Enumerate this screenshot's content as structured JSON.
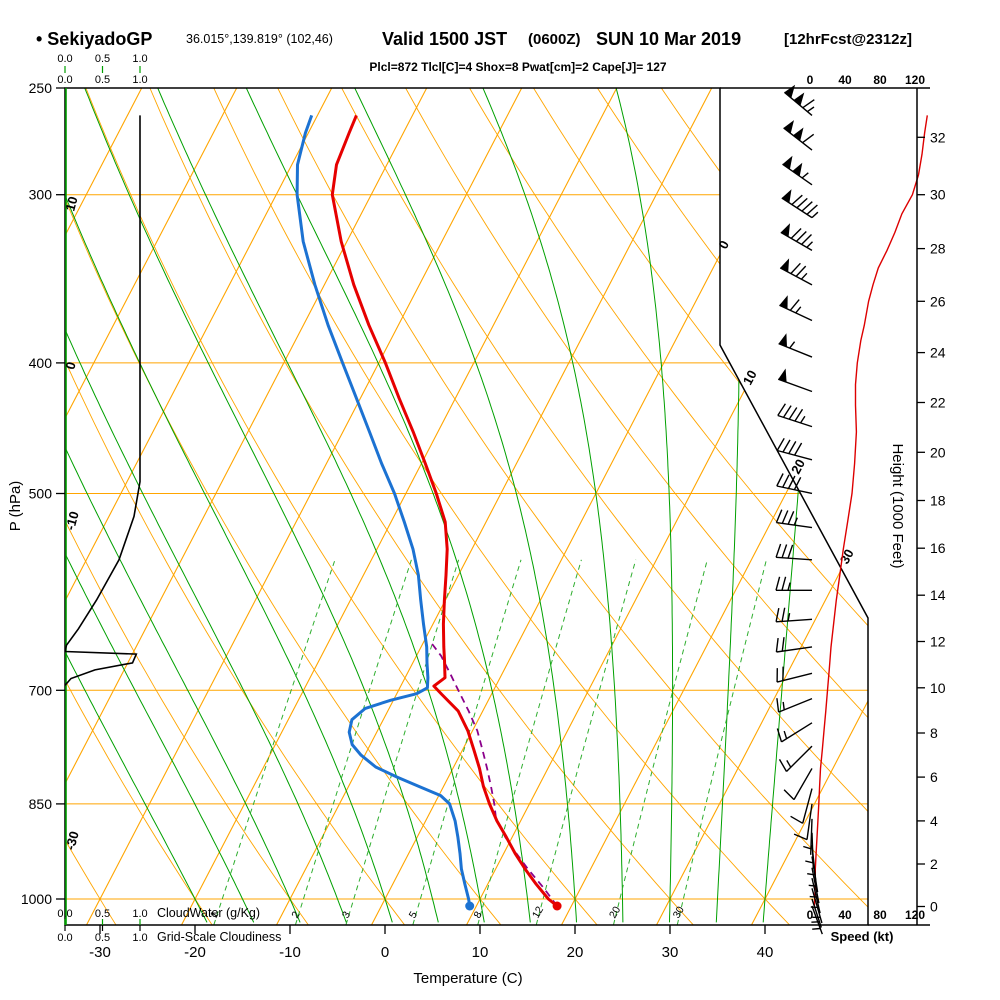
{
  "header": {
    "station": "• SekiyadoGP",
    "coords": "36.015°,139.819° (102,46)",
    "valid_main": "Valid 1500 JST",
    "valid_z": "(0600Z)",
    "valid_date": "SUN 10 Mar 2019",
    "fcst": "[12hrFcst@2312z]",
    "stats": "Plcl=872 Tlcl[C]=4 Shox=8 Pwat[cm]=2 Cape[J]= 127"
  },
  "axes": {
    "pressure_label": "P (hPa)",
    "pressure_ticks": [
      250,
      300,
      400,
      500,
      700,
      850,
      1000
    ],
    "temp_label": "Temperature (C)",
    "temp_ticks": [
      -30,
      -20,
      -10,
      0,
      10,
      20,
      30,
      40
    ],
    "height_label": "Height (1000 Feet)",
    "height_ticks": [
      [
        0,
        1013
      ],
      [
        2,
        942
      ],
      [
        4,
        875
      ],
      [
        6,
        812
      ],
      [
        8,
        753
      ],
      [
        10,
        697
      ],
      [
        12,
        644
      ],
      [
        14,
        595
      ],
      [
        16,
        549
      ],
      [
        18,
        506
      ],
      [
        20,
        466
      ],
      [
        22,
        428
      ],
      [
        24,
        393
      ],
      [
        26,
        360
      ],
      [
        28,
        329
      ],
      [
        30,
        300
      ],
      [
        32,
        272
      ]
    ],
    "speed_label": "Speed (kt)",
    "speed_ticks": [
      0,
      40,
      80,
      120
    ],
    "cloudwater_label": "CloudWater (g/Kg)",
    "cloudwater_scale": [
      "0.0",
      "0.5",
      "1.0"
    ],
    "cloudiness_label": "Grid-Scale Cloudiness",
    "cloudiness_scale": [
      "0.0",
      "0.5",
      "1.0"
    ]
  },
  "grid": {
    "isotherms_c": {
      "min": -120,
      "max": 40,
      "step": 10
    },
    "isotherm_edge_labels_c": [
      0,
      10,
      20,
      30
    ],
    "dry_adiabats_c": {
      "min": -40,
      "max": 130,
      "step": 10
    },
    "dry_adiabat_edge_labels_c": [
      10,
      0,
      -10,
      -30
    ],
    "moist_adiabats_c": {
      "min": -20,
      "max": 40,
      "step": 5
    },
    "mixing_ratio_g_kg": [
      1,
      2,
      3,
      5,
      8,
      12,
      20,
      30
    ]
  },
  "chart_data": {
    "type": "skewt_log_p_sounding",
    "pressure_range_hpa": [
      250,
      1045
    ],
    "indices": {
      "plcl_hpa": 872,
      "tlcl_c": 4,
      "showalter": 8,
      "pwat_cm": 2,
      "cape_j": 127
    },
    "surface": {
      "pressure_hpa": 1012,
      "temperature_c": 18.5,
      "dewpoint_c": 9.3
    },
    "temperature_c": [
      [
        1012,
        18.5
      ],
      [
        1000,
        17.2
      ],
      [
        975,
        15.1
      ],
      [
        950,
        13.1
      ],
      [
        925,
        11.2
      ],
      [
        900,
        9.4
      ],
      [
        875,
        7.5
      ],
      [
        850,
        5.8
      ],
      [
        825,
        4.2
      ],
      [
        800,
        2.8
      ],
      [
        775,
        1.2
      ],
      [
        750,
        -0.5
      ],
      [
        725,
        -2.6
      ],
      [
        705,
        -5.2
      ],
      [
        695,
        -6.5
      ],
      [
        685,
        -5.8
      ],
      [
        665,
        -6.8
      ],
      [
        650,
        -7.6
      ],
      [
        625,
        -8.9
      ],
      [
        600,
        -10.1
      ],
      [
        575,
        -11.3
      ],
      [
        550,
        -12.6
      ],
      [
        525,
        -14.3
      ],
      [
        500,
        -16.8
      ],
      [
        475,
        -19.6
      ],
      [
        450,
        -22.6
      ],
      [
        425,
        -25.9
      ],
      [
        400,
        -29.3
      ],
      [
        375,
        -33.1
      ],
      [
        350,
        -36.9
      ],
      [
        325,
        -40.6
      ],
      [
        300,
        -44.1
      ],
      [
        285,
        -45.3
      ],
      [
        270,
        -45.7
      ],
      [
        262,
        -45.9
      ]
    ],
    "dewpoint_c": [
      [
        1012,
        9.3
      ],
      [
        1000,
        8.8
      ],
      [
        975,
        7.6
      ],
      [
        950,
        6.4
      ],
      [
        925,
        5.4
      ],
      [
        900,
        4.3
      ],
      [
        875,
        3.1
      ],
      [
        850,
        1.6
      ],
      [
        838,
        0.2
      ],
      [
        825,
        -2.6
      ],
      [
        812,
        -5.4
      ],
      [
        798,
        -8.2
      ],
      [
        782,
        -10.4
      ],
      [
        768,
        -11.9
      ],
      [
        752,
        -12.9
      ],
      [
        736,
        -13.3
      ],
      [
        722,
        -12.5
      ],
      [
        712,
        -10.3
      ],
      [
        704,
        -7.9
      ],
      [
        697,
        -7.1
      ],
      [
        685,
        -7.6
      ],
      [
        668,
        -8.5
      ],
      [
        650,
        -9.4
      ],
      [
        625,
        -11.0
      ],
      [
        600,
        -12.6
      ],
      [
        575,
        -14.2
      ],
      [
        550,
        -16.2
      ],
      [
        525,
        -18.6
      ],
      [
        500,
        -21.2
      ],
      [
        475,
        -24.2
      ],
      [
        450,
        -27.2
      ],
      [
        425,
        -30.4
      ],
      [
        400,
        -33.8
      ],
      [
        375,
        -37.4
      ],
      [
        350,
        -41.0
      ],
      [
        325,
        -44.6
      ],
      [
        300,
        -47.8
      ],
      [
        285,
        -49.4
      ],
      [
        270,
        -50.3
      ],
      [
        262,
        -50.6
      ]
    ],
    "parcel_c": [
      [
        1012,
        18.5
      ],
      [
        980,
        16.0
      ],
      [
        950,
        13.4
      ],
      [
        920,
        10.9
      ],
      [
        900,
        9.3
      ],
      [
        872,
        7.3
      ],
      [
        850,
        6.3
      ],
      [
        825,
        5.0
      ],
      [
        800,
        3.6
      ],
      [
        775,
        2.1
      ],
      [
        750,
        0.5
      ],
      [
        725,
        -1.5
      ],
      [
        700,
        -3.7
      ],
      [
        680,
        -5.5
      ],
      [
        660,
        -7.4
      ],
      [
        645,
        -9.2
      ]
    ],
    "cloudiness_fraction": [
      [
        262,
        1.0
      ],
      [
        490,
        1.0
      ],
      [
        520,
        0.92
      ],
      [
        560,
        0.72
      ],
      [
        600,
        0.42
      ],
      [
        630,
        0.18
      ],
      [
        648,
        0.02
      ],
      [
        655,
        0.0
      ],
      [
        658,
        0.95
      ],
      [
        668,
        0.9
      ],
      [
        676,
        0.4
      ],
      [
        686,
        0.08
      ],
      [
        694,
        0.0
      ]
    ],
    "wind_speed_kt": [
      [
        1012,
        5
      ],
      [
        975,
        6
      ],
      [
        950,
        6
      ],
      [
        925,
        7
      ],
      [
        900,
        8
      ],
      [
        875,
        9
      ],
      [
        850,
        10
      ],
      [
        825,
        11
      ],
      [
        800,
        12
      ],
      [
        775,
        14
      ],
      [
        750,
        16
      ],
      [
        725,
        18
      ],
      [
        700,
        20
      ],
      [
        675,
        22
      ],
      [
        650,
        24
      ],
      [
        625,
        27
      ],
      [
        600,
        30
      ],
      [
        575,
        34
      ],
      [
        550,
        38
      ],
      [
        525,
        43
      ],
      [
        500,
        48
      ],
      [
        475,
        51
      ],
      [
        450,
        53
      ],
      [
        430,
        52
      ],
      [
        415,
        52
      ],
      [
        400,
        54
      ],
      [
        385,
        58
      ],
      [
        375,
        62
      ],
      [
        360,
        67
      ],
      [
        350,
        72
      ],
      [
        340,
        78
      ],
      [
        330,
        88
      ],
      [
        320,
        97
      ],
      [
        310,
        105
      ],
      [
        300,
        117
      ],
      [
        290,
        124
      ],
      [
        280,
        128
      ],
      [
        270,
        131
      ],
      [
        262,
        134
      ]
    ],
    "wind_barbs": [
      [
        262,
        115,
        310
      ],
      [
        278,
        110,
        308
      ],
      [
        295,
        105,
        305
      ],
      [
        312,
        95,
        303
      ],
      [
        330,
        85,
        300
      ],
      [
        350,
        75,
        298
      ],
      [
        372,
        65,
        295
      ],
      [
        396,
        57,
        292
      ],
      [
        420,
        50,
        290
      ],
      [
        446,
        45,
        288
      ],
      [
        472,
        42,
        285
      ],
      [
        500,
        38,
        282
      ],
      [
        530,
        33,
        278
      ],
      [
        560,
        30,
        274
      ],
      [
        590,
        27,
        270
      ],
      [
        620,
        24,
        266
      ],
      [
        650,
        21,
        262
      ],
      [
        680,
        19,
        256
      ],
      [
        710,
        17,
        248
      ],
      [
        740,
        15,
        238
      ],
      [
        770,
        13,
        225
      ],
      [
        800,
        11,
        210
      ],
      [
        828,
        9,
        195
      ],
      [
        850,
        8,
        188
      ],
      [
        872,
        7,
        182
      ],
      [
        893,
        6,
        178
      ],
      [
        912,
        5,
        174
      ],
      [
        930,
        5,
        171
      ],
      [
        948,
        5,
        169
      ],
      [
        965,
        4,
        167
      ],
      [
        982,
        4,
        164
      ],
      [
        1000,
        4,
        162
      ],
      [
        1012,
        4,
        160
      ]
    ]
  },
  "colors": {
    "grid_orange": "#ffa500",
    "moist_green": "#00a000",
    "mixing_green": "#2fae2f",
    "cloud_green": "#00a000",
    "temperature_red": "#e60000",
    "dewpoint_blue": "#1c72d2",
    "parcel_purple": "#8b008b",
    "speed_red": "#dd0000",
    "stats_magenta": "#aa00aa"
  }
}
